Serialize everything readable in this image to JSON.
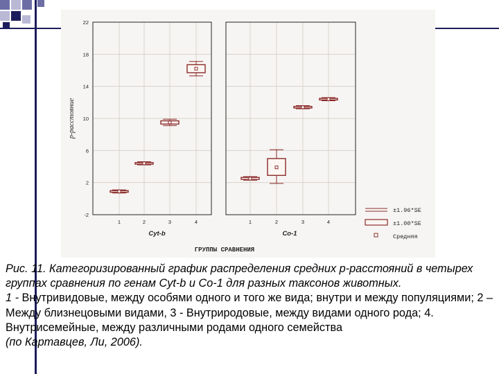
{
  "chart_data": {
    "type": "box",
    "ylabel": "p-расстояние",
    "xlabel": "ГРУППЫ СРАВНЕНИЯ",
    "ylim": [
      -2,
      22
    ],
    "yticks": [
      "-2",
      "2",
      "6",
      "10",
      "14",
      "18",
      "22"
    ],
    "ytick_values": [
      -2,
      2,
      6,
      10,
      14,
      18,
      22
    ],
    "panels": [
      {
        "name": "Cyt-b",
        "categories": [
          "1",
          "2",
          "3",
          "4"
        ],
        "boxes": [
          {
            "mean": 0.9,
            "se1_low": 0.8,
            "se1_high": 1.0,
            "se196_low": 0.7,
            "se196_high": 1.1
          },
          {
            "mean": 4.4,
            "se1_low": 4.3,
            "se1_high": 4.5,
            "se196_low": 4.2,
            "se196_high": 4.6
          },
          {
            "mean": 9.5,
            "se1_low": 9.3,
            "se1_high": 9.7,
            "se196_low": 9.1,
            "se196_high": 9.9
          },
          {
            "mean": 16.2,
            "se1_low": 15.7,
            "se1_high": 16.7,
            "se196_low": 15.3,
            "se196_high": 17.1
          }
        ]
      },
      {
        "name": "Co-1",
        "categories": [
          "1",
          "2",
          "3",
          "4"
        ],
        "boxes": [
          {
            "mean": 2.5,
            "se1_low": 2.4,
            "se1_high": 2.65,
            "se196_low": 2.3,
            "se196_high": 2.75
          },
          {
            "mean": 3.9,
            "se1_low": 2.9,
            "se1_high": 5.0,
            "se196_low": 1.9,
            "se196_high": 6.1
          },
          {
            "mean": 11.4,
            "se1_low": 11.3,
            "se1_high": 11.5,
            "se196_low": 11.2,
            "se196_high": 11.6
          },
          {
            "mean": 12.4,
            "se1_low": 12.3,
            "se1_high": 12.5,
            "se196_low": 12.2,
            "se196_high": 12.6
          }
        ]
      }
    ],
    "legend": [
      {
        "symbol": "whisker",
        "label": "±1.96*SE"
      },
      {
        "symbol": "box",
        "label": "±1.00*SE"
      },
      {
        "symbol": "marker",
        "label": "Средняя"
      }
    ],
    "legend_position": "bottom-right",
    "grid": true,
    "colors": {
      "series": "#8b2a2a",
      "axis": "#222222",
      "grid": "#d8d2cc"
    }
  },
  "caption": {
    "fig_label": "Рис. 11.",
    "fig_title": " Категоризированный график распределения средних p-расстояний в четырех группах сравнения по генам Cyt-b и Co-1 для разных таксонов животных.",
    "note_start": "1 - ",
    "note_body": "Внутривидовые, между особями одного и того же вида; внутри и между популяциями; 2 – Между близнецовыми видами, 3 - Внутриродовые, между видами одного рода; 4. Внутрисемейные, между различными родами одного семейства",
    "citation": "(по Картавцев, Ли, 2006)."
  },
  "colors": {
    "deco_dark": "#1c1c5c",
    "deco_light": "#b9b9d6",
    "deco_mid": "#6d6da6"
  }
}
